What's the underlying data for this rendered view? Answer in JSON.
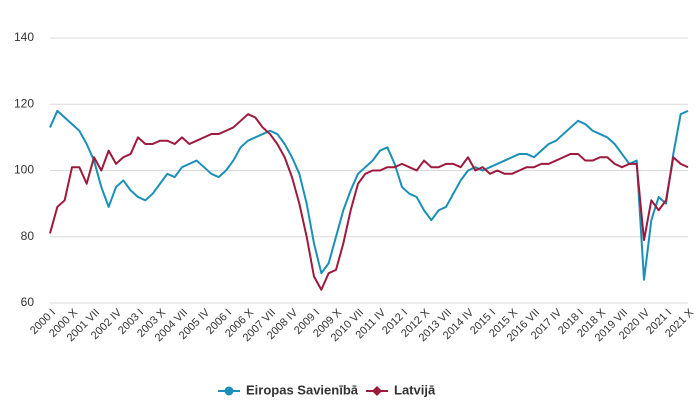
{
  "chart_data": {
    "type": "line",
    "categories": [
      "2000 I",
      null,
      null,
      "2000 X",
      null,
      null,
      "2001 VII",
      null,
      null,
      "2002 IV",
      null,
      null,
      "2003 I",
      null,
      null,
      "2003 X",
      null,
      null,
      "2004 VII",
      null,
      null,
      "2005 IV",
      null,
      null,
      "2006 I",
      null,
      null,
      "2006 X",
      null,
      null,
      "2007 VII",
      null,
      null,
      "2008 IV",
      null,
      null,
      "2009 I",
      null,
      null,
      "2009 X",
      null,
      null,
      "2010 VII",
      null,
      null,
      "2011 IV",
      null,
      null,
      "2012 I",
      null,
      null,
      "2012 X",
      null,
      null,
      "2013 VII",
      null,
      null,
      "2014 IV",
      null,
      null,
      "2015 I",
      null,
      null,
      "2015 X",
      null,
      null,
      "2016 VII",
      null,
      null,
      "2017 IV",
      null,
      null,
      "2018 I",
      null,
      null,
      "2018 X",
      null,
      null,
      "2019 VII",
      null,
      null,
      "2020 IV",
      null,
      null,
      "2021 I",
      null,
      null,
      "2021 X"
    ],
    "series": [
      {
        "name": "Eiropas Savienībā",
        "color": "#1a8fb8",
        "marker": "circle",
        "values": [
          113,
          118,
          116,
          114,
          112,
          108,
          103,
          95,
          89,
          95,
          97,
          94,
          92,
          91,
          93,
          96,
          99,
          98,
          101,
          102,
          103,
          101,
          99,
          98,
          100,
          103,
          107,
          109,
          110,
          111,
          112,
          111,
          108,
          104,
          99,
          90,
          78,
          69,
          72,
          80,
          88,
          94,
          99,
          101,
          103,
          106,
          107,
          102,
          95,
          93,
          92,
          88,
          85,
          88,
          89,
          93,
          97,
          100,
          101,
          100,
          101,
          102,
          103,
          104,
          105,
          105,
          104,
          106,
          108,
          109,
          111,
          113,
          115,
          114,
          112,
          111,
          110,
          108,
          105,
          102,
          103,
          67,
          85,
          92,
          90,
          105,
          117,
          118
        ]
      },
      {
        "name": "Latvijā",
        "color": "#9e1a3c",
        "marker": "diamond",
        "values": [
          81,
          89,
          91,
          101,
          101,
          96,
          104,
          100,
          106,
          102,
          104,
          105,
          110,
          108,
          108,
          109,
          109,
          108,
          110,
          108,
          109,
          110,
          111,
          111,
          112,
          113,
          115,
          117,
          116,
          113,
          111,
          108,
          104,
          98,
          90,
          80,
          68,
          64,
          69,
          70,
          78,
          88,
          96,
          99,
          100,
          100,
          101,
          101,
          102,
          101,
          100,
          103,
          101,
          101,
          102,
          102,
          101,
          104,
          100,
          101,
          99,
          100,
          99,
          99,
          100,
          101,
          101,
          102,
          102,
          103,
          104,
          105,
          105,
          103,
          103,
          104,
          104,
          102,
          101,
          102,
          102,
          79,
          91,
          88,
          91,
          104,
          102,
          101
        ]
      }
    ],
    "ylim": [
      60,
      140
    ],
    "yticks": [
      60,
      80,
      100,
      120,
      140
    ],
    "grid": true
  }
}
